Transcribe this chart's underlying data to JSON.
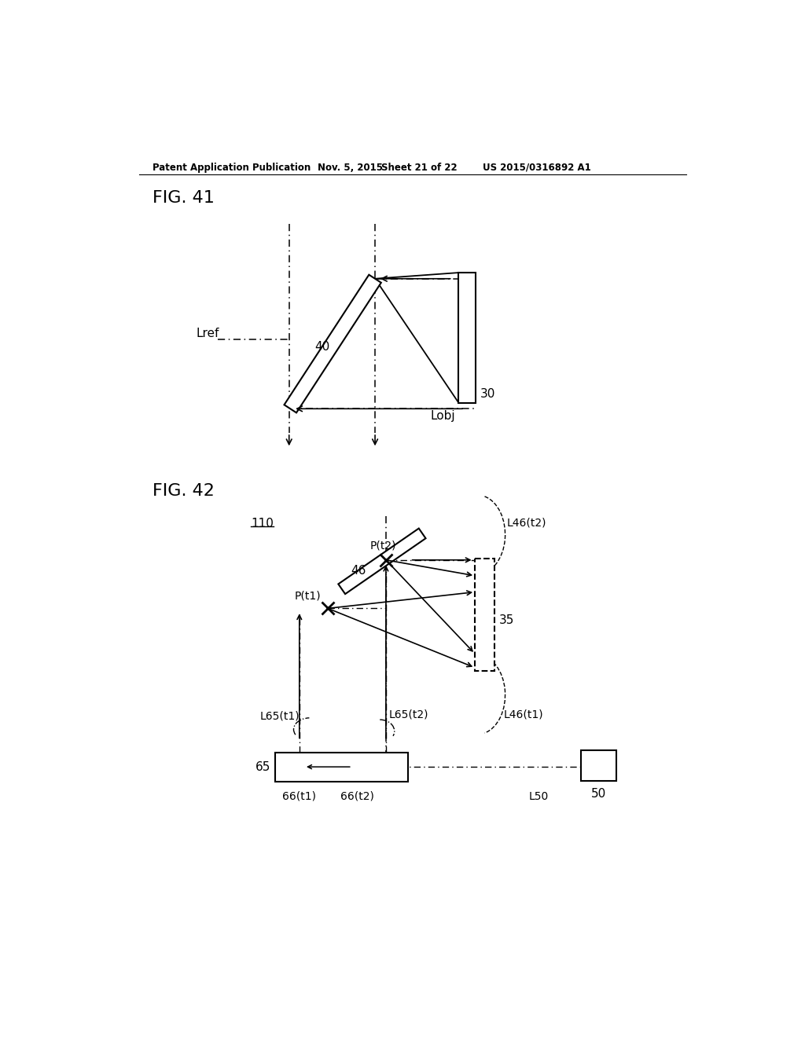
{
  "background_color": "#ffffff",
  "header_text": "Patent Application Publication",
  "header_date": "Nov. 5, 2015",
  "header_sheet": "Sheet 21 of 22",
  "header_patent": "US 2015/0316892 A1",
  "fig41_label": "FIG. 41",
  "fig42_label": "FIG. 42"
}
